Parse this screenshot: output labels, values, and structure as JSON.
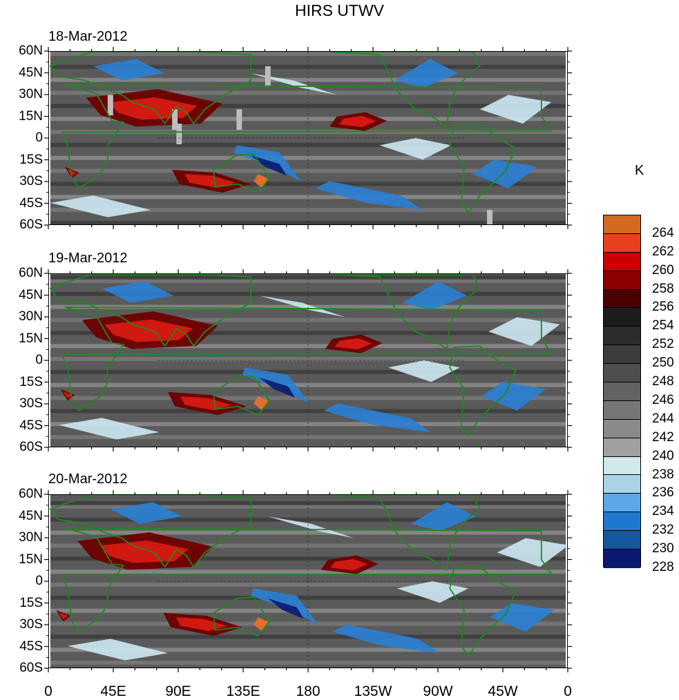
{
  "title": "HIRS UTWV",
  "panels": [
    {
      "date": "18-Mar-2012"
    },
    {
      "date": "19-Mar-2012"
    },
    {
      "date": "20-Mar-2012"
    }
  ],
  "lat_labels": [
    "60N",
    "45N",
    "30N",
    "15N",
    "0",
    "15S",
    "30S",
    "45S",
    "60S"
  ],
  "lon_labels": [
    "0",
    "45E",
    "90E",
    "135E",
    "180",
    "135W",
    "90W",
    "45W",
    "0"
  ],
  "colorbar": {
    "units": "K",
    "levels": [
      "264",
      "262",
      "260",
      "258",
      "256",
      "254",
      "252",
      "250",
      "248",
      "246",
      "244",
      "242",
      "240",
      "238",
      "236",
      "234",
      "232",
      "230",
      "228"
    ],
    "colors": [
      "#d2691e",
      "#e8401c",
      "#cc0000",
      "#8b0000",
      "#4a0000",
      "#1c1c1c",
      "#2c2c2c",
      "#3c3c3c",
      "#4e4e4e",
      "#626262",
      "#767676",
      "#8a8a8a",
      "#a0a0a0",
      "#cfe9ec",
      "#a8d4e6",
      "#5aa8e8",
      "#1f78d0",
      "#1458a0",
      "#0a1a70"
    ]
  },
  "colors": {
    "coast": "#1e8a1e",
    "red": "#d61a12",
    "darkred": "#6e0000",
    "orange": "#e8702a",
    "blue": "#2a7fd4",
    "lightblue": "#cde8f2",
    "navy": "#0a1a70",
    "grey": "#bdbdbd"
  }
}
